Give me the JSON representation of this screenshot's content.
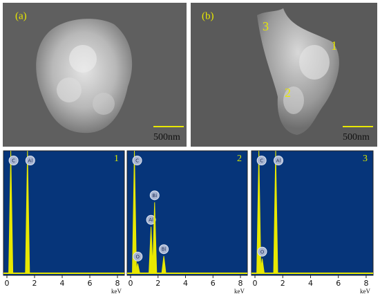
{
  "panels": [
    {
      "label": "(a)",
      "scale_bar": "500nm"
    },
    {
      "label": "(b)",
      "scale_bar": "500nm",
      "markers": [
        "3",
        "1",
        "2"
      ]
    }
  ],
  "spectra": [
    {
      "number": "1",
      "xlim": [
        -0.25,
        8.5
      ],
      "xticks": [
        0,
        2,
        4,
        6,
        8
      ],
      "x_unit": "keV",
      "peaks": [
        {
          "element": "C",
          "kev": 0.28,
          "height": 100
        },
        {
          "element": "Al",
          "kev": 1.49,
          "height": 100
        }
      ]
    },
    {
      "number": "2",
      "xlim": [
        -0.25,
        8.5
      ],
      "xticks": [
        0,
        2,
        4,
        6,
        8
      ],
      "x_unit": "keV",
      "peaks": [
        {
          "element": "C",
          "kev": 0.28,
          "height": 100
        },
        {
          "element": "O",
          "kev": 0.52,
          "height": 8
        },
        {
          "element": "Al",
          "kev": 1.49,
          "height": 38
        },
        {
          "element": "Bi",
          "kev": 1.75,
          "height": 58
        },
        {
          "element": "Bi",
          "kev": 2.42,
          "height": 14
        }
      ]
    },
    {
      "number": "3",
      "xlim": [
        -0.25,
        8.5
      ],
      "xticks": [
        0,
        2,
        4,
        6,
        8
      ],
      "x_unit": "keV",
      "peaks": [
        {
          "element": "C",
          "kev": 0.28,
          "height": 100
        },
        {
          "element": "O",
          "kev": 0.52,
          "height": 12
        },
        {
          "element": "Al",
          "kev": 1.49,
          "height": 100
        }
      ]
    }
  ]
}
